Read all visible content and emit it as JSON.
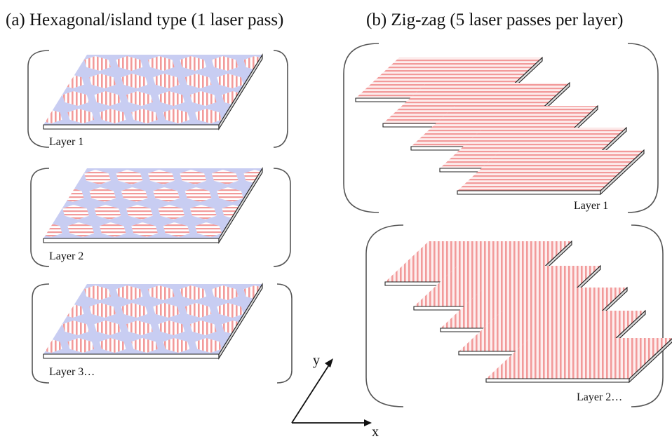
{
  "panels": {
    "a": {
      "heading": "(a) Hexagonal/island type (1 laser pass)",
      "layers": [
        {
          "label": "Layer 1",
          "hatch": "vertical"
        },
        {
          "label": "Layer 2",
          "hatch": "horizontal"
        },
        {
          "label": "Layer 3…",
          "hatch": "vertical"
        }
      ]
    },
    "b": {
      "heading": "(b) Zig-zag (5 laser passes per layer)",
      "groups": [
        {
          "label": "Layer 1",
          "passes": 5,
          "hatch": "horizontal"
        },
        {
          "label": "Layer 2…",
          "passes": 5,
          "hatch": "vertical"
        }
      ]
    }
  },
  "axes": {
    "x_label": "x",
    "y_label": "y"
  },
  "colors": {
    "scan_line": "#f29a9a",
    "plate_top": "#fdeeee",
    "grid_background": "#c8cdf2",
    "plate_edge": "#ffffff",
    "outline": "#222222",
    "bracket": "#555555"
  }
}
